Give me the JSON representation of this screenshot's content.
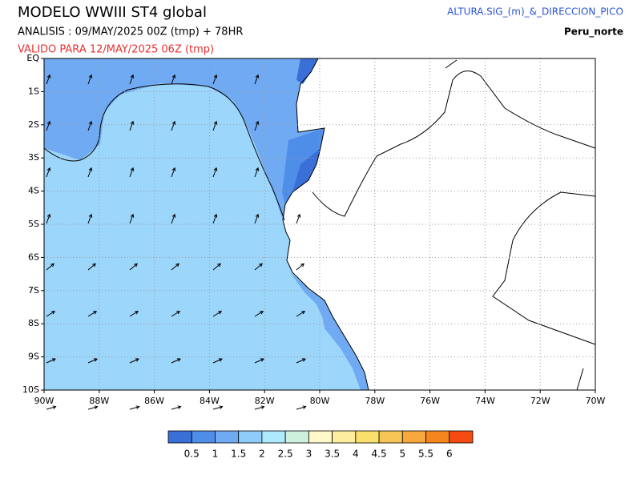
{
  "header": {
    "title": "MODELO WWIII ST4 global",
    "analysis": "ANALISIS : 09/MAY/2025 00Z  (tmp) + 78HR",
    "valid": "VALIDO PARA  12/MAY/2025 06Z  (tmp)",
    "variable": "ALTURA.SIG_(m)_&_DIRECCION_PICO",
    "region": "Peru_norte"
  },
  "map": {
    "x_labels": [
      "90W",
      "88W",
      "86W",
      "84W",
      "82W",
      "80W",
      "78W",
      "76W",
      "74W",
      "72W",
      "70W"
    ],
    "y_labels": [
      "EQ",
      "1S",
      "2S",
      "3S",
      "4S",
      "5S",
      "6S",
      "7S",
      "8S",
      "9S",
      "10S"
    ]
  },
  "legend": {
    "colors": [
      "#3a6fd8",
      "#4f8ee8",
      "#70aaf2",
      "#8ecdf9",
      "#aeeafc",
      "#ccf0dc",
      "#fff8c8",
      "#fcee9e",
      "#f9df6c",
      "#f6c556",
      "#f8a93e",
      "#f5861e",
      "#f54b12"
    ],
    "labels": [
      "0.5",
      "1",
      "1.5",
      "2",
      "2.5",
      "3",
      "3.5",
      "4",
      "4.5",
      "5",
      "5.5",
      "6"
    ]
  }
}
